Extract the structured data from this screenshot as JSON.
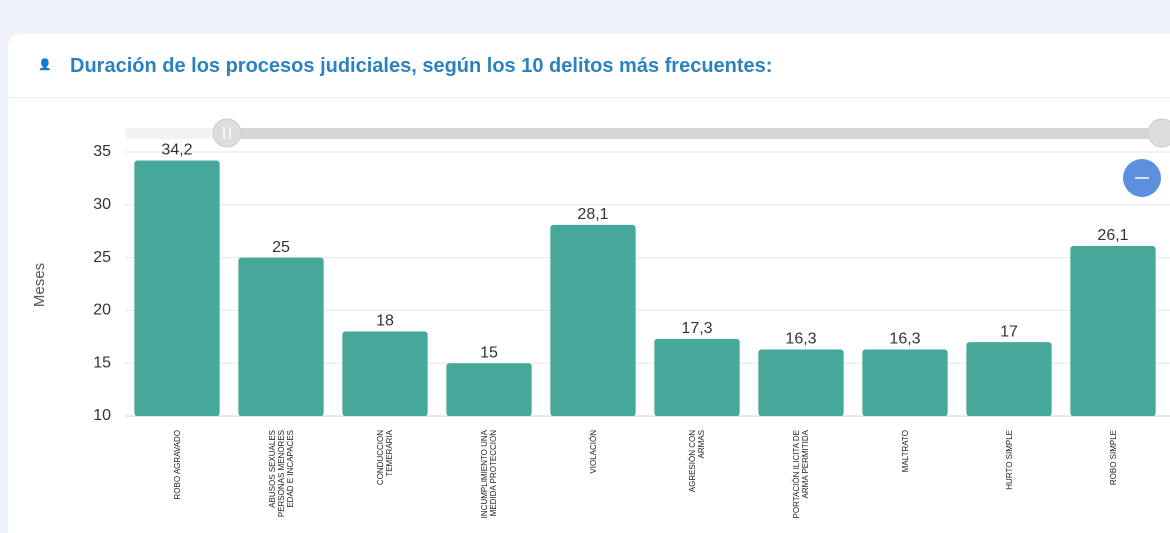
{
  "chart_data": {
    "type": "bar",
    "title": "Duración de los procesos judiciales, según los 10 delitos más frecuentes:",
    "y_label": "Meses",
    "categories": [
      "ROBO AGRAVADO",
      "ABUSOS SEXUALES PERSONAS MENORES EDAD E INCAPACES",
      "CONDUCCION TEMERARIA",
      "INCUMPLIMIENTO UNA MEDIDA PROTECCION",
      "VIOLACIÓN",
      "AGRESIÓN CON ARMAS",
      "PORTACIÓN ILICITA DE ARMA PERMITIDA",
      "MALTRATO",
      "HURTO SIMPLE",
      "ROBO SIMPLE"
    ],
    "values": [
      34.2,
      25,
      18,
      15,
      28.1,
      17.3,
      16.3,
      16.3,
      17,
      26.1
    ],
    "value_labels": [
      "34,2",
      "25",
      "18",
      "15",
      "28,1",
      "17,3",
      "16,3",
      "16,3",
      "17",
      "26,1"
    ],
    "color": "#45a89b",
    "ylim": [
      10,
      35
    ],
    "yticks": [
      10,
      15,
      20,
      25,
      30,
      35
    ],
    "grid": true
  }
}
